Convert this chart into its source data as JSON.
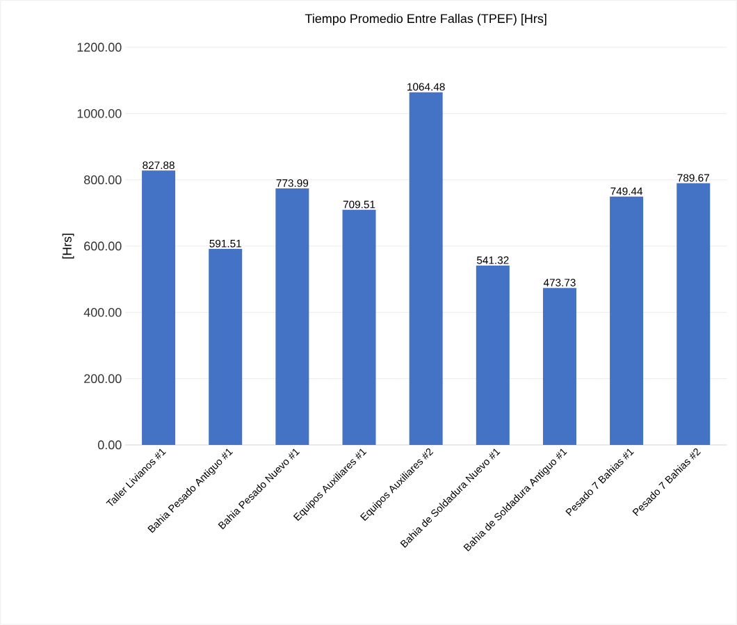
{
  "chart_data": {
    "type": "bar",
    "title": "Tiempo Promedio Entre Fallas (TPEF) [Hrs]",
    "ylabel": "[Hrs]",
    "categories": [
      "Taller Livianos #1",
      "Bahia Pesado Antiguo #1",
      "Bahia Pesado Nuevo #1",
      "Equipos Auxiliares #1",
      "Equipos Auxiliares #2",
      "Bahia de Soldadura Nuevo #1",
      "Bahia de Soldadura Antiguo #1",
      "Pesado 7 Bahias #1",
      "Pesado 7 Bahias #2"
    ],
    "values": [
      827.88,
      591.51,
      773.99,
      709.51,
      1064.48,
      541.32,
      473.73,
      749.44,
      789.67
    ],
    "color": "#4472c4",
    "ylim": [
      0,
      1200
    ],
    "yticks": [
      {
        "value": 0,
        "label": "0.00"
      },
      {
        "value": 200,
        "label": "200.00"
      },
      {
        "value": 400,
        "label": "400.00"
      },
      {
        "value": 600,
        "label": "600.00"
      },
      {
        "value": 800,
        "label": "800.00"
      },
      {
        "value": 1000,
        "label": "1000.00"
      },
      {
        "value": 1200,
        "label": "1200.00"
      }
    ],
    "grid": "y",
    "data_labels": true
  }
}
